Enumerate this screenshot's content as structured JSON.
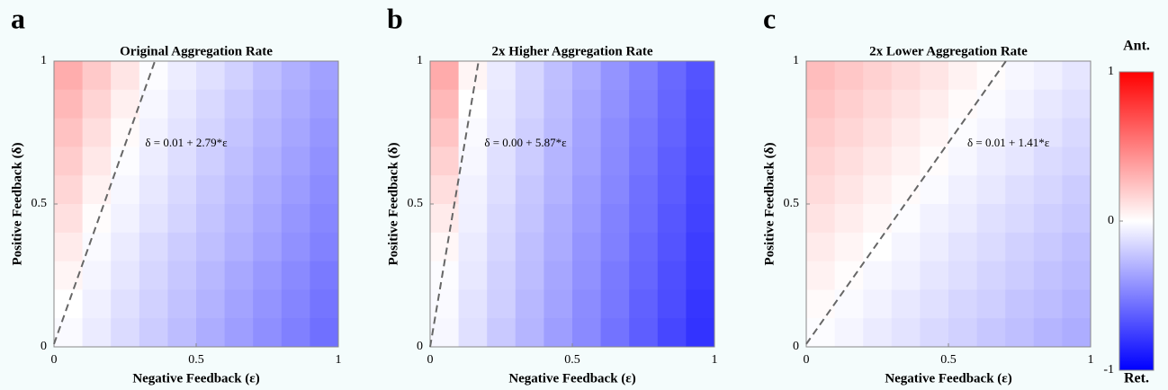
{
  "chart_data": [
    {
      "type": "heatmap",
      "panel_label": "a",
      "title": "Original Aggregation Rate",
      "x_label": "Negative Feedback (ε)",
      "y_label": "Positive Feedback (δ)",
      "xlim": [
        0,
        1
      ],
      "ylim": [
        0,
        1
      ],
      "xticks": [
        0,
        0.5,
        1
      ],
      "yticks": [
        0,
        0.5,
        1
      ],
      "x": [
        0.05,
        0.15,
        0.25,
        0.35,
        0.45,
        0.55,
        0.65,
        0.75,
        0.85,
        0.95
      ],
      "y": [
        0.95,
        0.85,
        0.75,
        0.65,
        0.55,
        0.45,
        0.35,
        0.25,
        0.15,
        0.05
      ],
      "z": [
        [
          0.32,
          0.21,
          0.1,
          -0.01,
          -0.07,
          -0.12,
          -0.18,
          -0.25,
          -0.31,
          -0.37
        ],
        [
          0.28,
          0.17,
          0.06,
          -0.03,
          -0.09,
          -0.15,
          -0.21,
          -0.27,
          -0.33,
          -0.39
        ],
        [
          0.24,
          0.13,
          0.02,
          -0.05,
          -0.11,
          -0.17,
          -0.23,
          -0.29,
          -0.35,
          -0.41
        ],
        [
          0.2,
          0.09,
          -0.01,
          -0.07,
          -0.13,
          -0.19,
          -0.25,
          -0.31,
          -0.37,
          -0.43
        ],
        [
          0.16,
          0.05,
          -0.03,
          -0.09,
          -0.15,
          -0.21,
          -0.27,
          -0.33,
          -0.39,
          -0.45
        ],
        [
          0.12,
          0.01,
          -0.05,
          -0.11,
          -0.17,
          -0.23,
          -0.29,
          -0.35,
          -0.41,
          -0.47
        ],
        [
          0.08,
          -0.02,
          -0.08,
          -0.14,
          -0.2,
          -0.25,
          -0.31,
          -0.37,
          -0.43,
          -0.49
        ],
        [
          0.04,
          -0.04,
          -0.1,
          -0.16,
          -0.22,
          -0.28,
          -0.34,
          -0.4,
          -0.46,
          -0.52
        ],
        [
          0.0,
          -0.06,
          -0.12,
          -0.18,
          -0.24,
          -0.3,
          -0.36,
          -0.42,
          -0.48,
          -0.54
        ],
        [
          -0.02,
          -0.08,
          -0.14,
          -0.2,
          -0.26,
          -0.32,
          -0.38,
          -0.44,
          -0.5,
          -0.56
        ]
      ],
      "fit": {
        "intercept": 0.01,
        "slope": 2.79,
        "label": "δ = 0.01 + 2.79*ε",
        "color": "#666666"
      }
    },
    {
      "type": "heatmap",
      "panel_label": "b",
      "title": "2x Higher Aggregation Rate",
      "x_label": "Negative Feedback (ε)",
      "y_label": "Positive Feedback (δ)",
      "xlim": [
        0,
        1
      ],
      "ylim": [
        0,
        1
      ],
      "xticks": [
        0,
        0.5,
        1
      ],
      "yticks": [
        0,
        0.5,
        1
      ],
      "x": [
        0.05,
        0.15,
        0.25,
        0.35,
        0.45,
        0.55,
        0.65,
        0.75,
        0.85,
        0.95
      ],
      "y": [
        0.95,
        0.85,
        0.75,
        0.65,
        0.55,
        0.45,
        0.35,
        0.25,
        0.15,
        0.05
      ],
      "z": [
        [
          0.33,
          0.04,
          -0.08,
          -0.16,
          -0.25,
          -0.33,
          -0.42,
          -0.5,
          -0.59,
          -0.67
        ],
        [
          0.28,
          0.0,
          -0.09,
          -0.17,
          -0.26,
          -0.35,
          -0.43,
          -0.51,
          -0.6,
          -0.69
        ],
        [
          0.23,
          -0.02,
          -0.1,
          -0.19,
          -0.27,
          -0.36,
          -0.45,
          -0.53,
          -0.61,
          -0.7
        ],
        [
          0.18,
          -0.03,
          -0.12,
          -0.2,
          -0.29,
          -0.37,
          -0.46,
          -0.54,
          -0.63,
          -0.71
        ],
        [
          0.13,
          -0.05,
          -0.13,
          -0.22,
          -0.3,
          -0.39,
          -0.47,
          -0.56,
          -0.64,
          -0.73
        ],
        [
          0.08,
          -0.06,
          -0.15,
          -0.23,
          -0.32,
          -0.4,
          -0.49,
          -0.57,
          -0.66,
          -0.74
        ],
        [
          0.03,
          -0.08,
          -0.16,
          -0.25,
          -0.33,
          -0.42,
          -0.5,
          -0.59,
          -0.67,
          -0.76
        ],
        [
          -0.01,
          -0.09,
          -0.18,
          -0.26,
          -0.35,
          -0.43,
          -0.52,
          -0.6,
          -0.69,
          -0.77
        ],
        [
          -0.02,
          -0.11,
          -0.19,
          -0.28,
          -0.36,
          -0.45,
          -0.53,
          -0.62,
          -0.7,
          -0.79
        ],
        [
          -0.03,
          -0.12,
          -0.21,
          -0.29,
          -0.38,
          -0.46,
          -0.55,
          -0.63,
          -0.72,
          -0.8
        ]
      ],
      "fit": {
        "intercept": 0.0,
        "slope": 5.87,
        "label": "δ = 0.00 + 5.87*ε",
        "color": "#666666"
      }
    },
    {
      "type": "heatmap",
      "panel_label": "c",
      "title": "2x Lower Aggregation Rate",
      "x_label": "Negative Feedback (ε)",
      "y_label": "Positive Feedback (δ)",
      "xlim": [
        0,
        1
      ],
      "ylim": [
        0,
        1
      ],
      "xticks": [
        0,
        0.5,
        1
      ],
      "yticks": [
        0,
        0.5,
        1
      ],
      "x": [
        0.05,
        0.15,
        0.25,
        0.35,
        0.45,
        0.55,
        0.65,
        0.75,
        0.85,
        0.95
      ],
      "y": [
        0.95,
        0.85,
        0.75,
        0.65,
        0.55,
        0.45,
        0.35,
        0.25,
        0.15,
        0.05
      ],
      "z": [
        [
          0.26,
          0.22,
          0.18,
          0.14,
          0.1,
          0.05,
          0.01,
          -0.03,
          -0.06,
          -0.1
        ],
        [
          0.23,
          0.19,
          0.15,
          0.11,
          0.07,
          0.02,
          -0.02,
          -0.05,
          -0.09,
          -0.12
        ],
        [
          0.2,
          0.16,
          0.12,
          0.08,
          0.04,
          -0.01,
          -0.04,
          -0.08,
          -0.11,
          -0.15
        ],
        [
          0.17,
          0.13,
          0.09,
          0.05,
          0.01,
          -0.03,
          -0.07,
          -0.1,
          -0.14,
          -0.17
        ],
        [
          0.14,
          0.1,
          0.06,
          0.02,
          -0.02,
          -0.06,
          -0.09,
          -0.13,
          -0.16,
          -0.2
        ],
        [
          0.11,
          0.07,
          0.03,
          -0.01,
          -0.05,
          -0.08,
          -0.12,
          -0.15,
          -0.19,
          -0.22
        ],
        [
          0.08,
          0.04,
          0.0,
          -0.04,
          -0.07,
          -0.11,
          -0.14,
          -0.18,
          -0.21,
          -0.25
        ],
        [
          0.05,
          0.01,
          -0.03,
          -0.06,
          -0.1,
          -0.13,
          -0.17,
          -0.2,
          -0.24,
          -0.27
        ],
        [
          0.02,
          -0.02,
          -0.05,
          -0.09,
          -0.12,
          -0.16,
          -0.19,
          -0.23,
          -0.26,
          -0.3
        ],
        [
          -0.01,
          -0.04,
          -0.08,
          -0.11,
          -0.15,
          -0.18,
          -0.22,
          -0.25,
          -0.29,
          -0.32
        ]
      ],
      "fit": {
        "intercept": 0.01,
        "slope": 1.41,
        "label": "δ = 0.01 + 1.41*ε",
        "color": "#666666"
      }
    }
  ],
  "colorbar": {
    "lim": [
      -1,
      1
    ],
    "ticks": [
      -1,
      0,
      1
    ],
    "cmap": [
      "#0000ff",
      "#ffffff",
      "#ff0000"
    ],
    "top_label": "Ant.",
    "bottom_label": "Ret.",
    "top_color": "#e8141c",
    "bottom_color": "#1f5ad6"
  }
}
